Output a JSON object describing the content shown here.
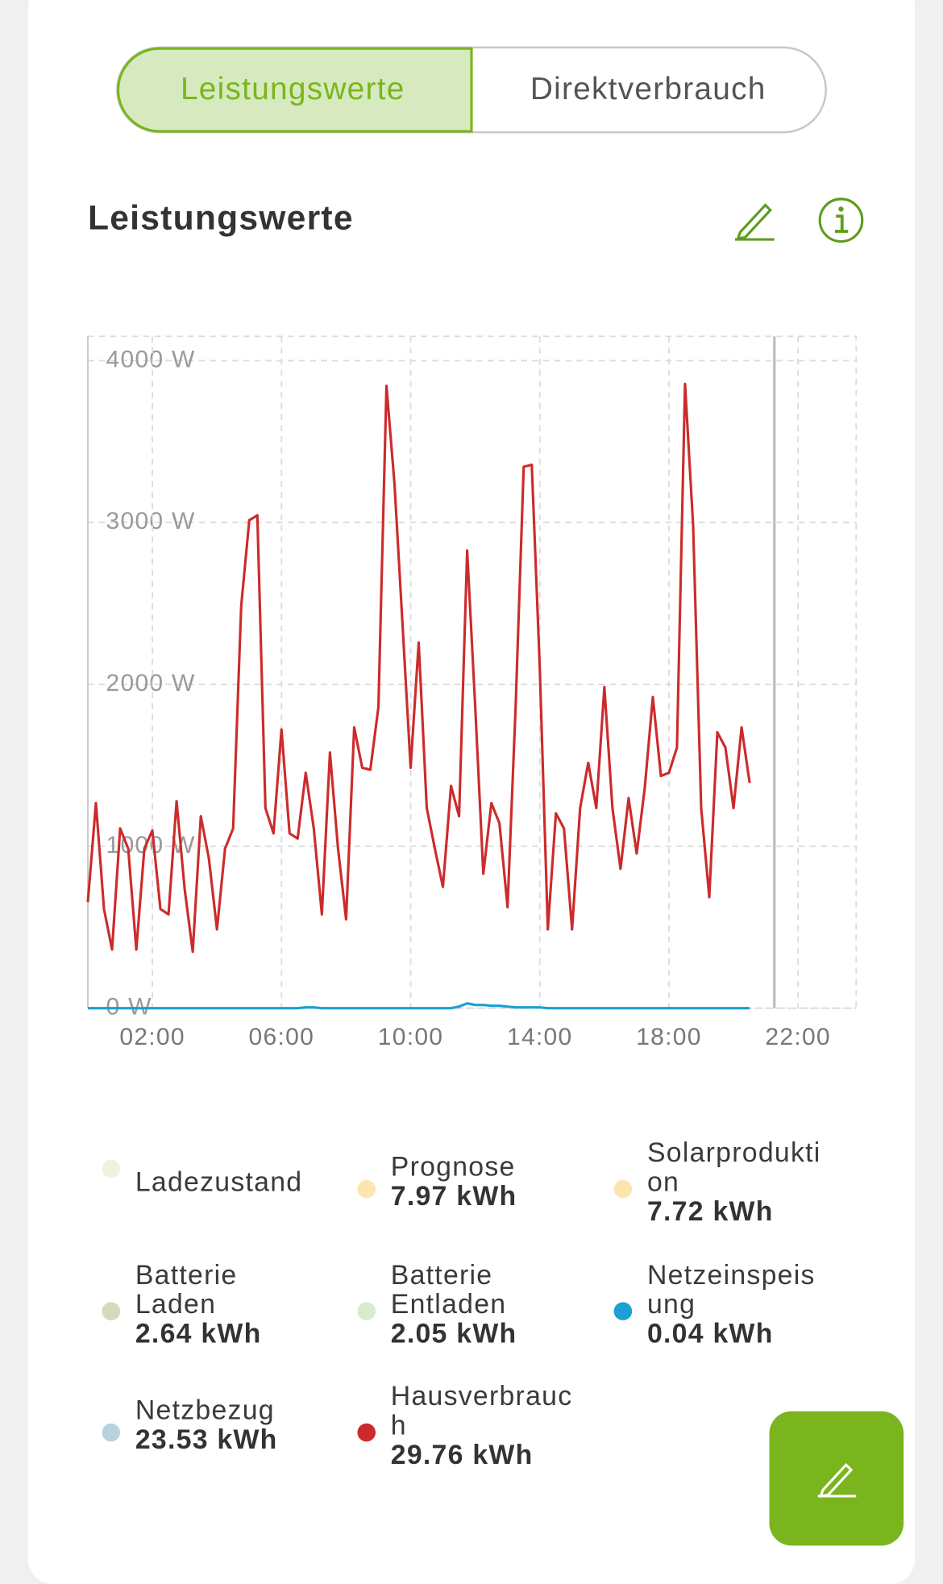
{
  "tabs": [
    "Leistungswerte",
    "Direktverbrauch"
  ],
  "chart_data": {
    "type": "line",
    "title": "Leistungswerte",
    "x": [
      0,
      0.25,
      0.5,
      0.75,
      1,
      1.25,
      1.5,
      1.75,
      2,
      2.25,
      2.5,
      2.75,
      3,
      3.25,
      3.5,
      3.75,
      4,
      4.25,
      4.5,
      4.75,
      5,
      5.25,
      5.5,
      5.75,
      6,
      6.25,
      6.5,
      6.75,
      7,
      7.25,
      7.5,
      7.75,
      8,
      8.25,
      8.5,
      8.75,
      9,
      9.25,
      9.5,
      9.75,
      10,
      10.25,
      10.5,
      10.75,
      11,
      11.25,
      11.5,
      11.75,
      12,
      12.25,
      12.5,
      12.75,
      13,
      13.25,
      13.5,
      13.75,
      14,
      14.25,
      14.5,
      14.75,
      15,
      15.25,
      15.5,
      15.75,
      16,
      16.25,
      16.5,
      16.75,
      17,
      17.25,
      17.5,
      17.75,
      18,
      18.25,
      18.5,
      18.75,
      19,
      19.25,
      19.5,
      19.75,
      20,
      20.25,
      20.5
    ],
    "xlim": [
      0,
      23.8
    ],
    "xticks": [
      {
        "value": 2,
        "label": "02:00"
      },
      {
        "value": 6,
        "label": "06:00"
      },
      {
        "value": 10,
        "label": "10:00"
      },
      {
        "value": 14,
        "label": "14:00"
      },
      {
        "value": 18,
        "label": "18:00"
      },
      {
        "value": 22,
        "label": "22:00"
      }
    ],
    "ylim": [
      0,
      4150
    ],
    "yticks": [
      {
        "value": 0,
        "label": "0 W"
      },
      {
        "value": 1000,
        "label": "1000 W"
      },
      {
        "value": 2000,
        "label": "2000 W"
      },
      {
        "value": 3000,
        "label": "3000 W"
      },
      {
        "value": 4000,
        "label": "4000 W"
      }
    ],
    "grid": true,
    "series": [
      {
        "name": "Ladezustand",
        "color": "#f3f1dc"
      },
      {
        "name": "Prognose",
        "color": "#fce6b0",
        "total": "7.97 kWh"
      },
      {
        "name": "Solarproduktion",
        "color": "#fce6b0",
        "total": "7.72 kWh"
      },
      {
        "name": "Batterie Laden",
        "color": "#d3dbbd",
        "total": "2.64 kWh"
      },
      {
        "name": "Batterie Entladen",
        "color": "#d9ebcb",
        "total": "2.05 kWh"
      },
      {
        "name": "Netzeinspeisung",
        "color": "#1aa0d2",
        "total": "0.04 kWh",
        "values": [
          0,
          0,
          0,
          0,
          0,
          0,
          0,
          0,
          0,
          0,
          0,
          0,
          0,
          0,
          0,
          0,
          0,
          0,
          0,
          0,
          0,
          0,
          0,
          0,
          0,
          0,
          0,
          5,
          5,
          0,
          0,
          0,
          0,
          0,
          0,
          0,
          0,
          0,
          0,
          0,
          0,
          0,
          0,
          0,
          0,
          0,
          10,
          30,
          20,
          20,
          15,
          15,
          10,
          5,
          5,
          5,
          5,
          0,
          0,
          0,
          0,
          0,
          0,
          0,
          0,
          0,
          0,
          0,
          0,
          0,
          0,
          0,
          0,
          0,
          0,
          0,
          0,
          0,
          0,
          0,
          0,
          0,
          0
        ]
      },
      {
        "name": "Netzbezug",
        "color": "#b6d3de",
        "total": "23.53 kWh"
      },
      {
        "name": "Hausverbrauch",
        "color": "#cc2b2b",
        "total": "29.76 kWh",
        "values": [
          655,
          1267,
          612,
          362,
          1110,
          986,
          362,
          986,
          1098,
          612,
          580,
          1279,
          736,
          349,
          1186,
          924,
          487,
          986,
          1110,
          2484,
          3014,
          3045,
          1236,
          1080,
          1722,
          1080,
          1048,
          1454,
          1110,
          580,
          1579,
          986,
          549,
          1735,
          1485,
          1473,
          1860,
          3844,
          3232,
          2359,
          1485,
          2259,
          1236,
          986,
          749,
          1373,
          1186,
          2827,
          1860,
          830,
          1267,
          1142,
          624,
          1860,
          3345,
          3357,
          2109,
          487,
          1204,
          1110,
          487,
          1236,
          1516,
          1236,
          1984,
          1236,
          861,
          1298,
          955,
          1360,
          1922,
          1435,
          1454,
          1610,
          3856,
          2983,
          1236,
          686,
          1704,
          1610,
          1236,
          1735,
          1392
        ]
      }
    ]
  }
}
